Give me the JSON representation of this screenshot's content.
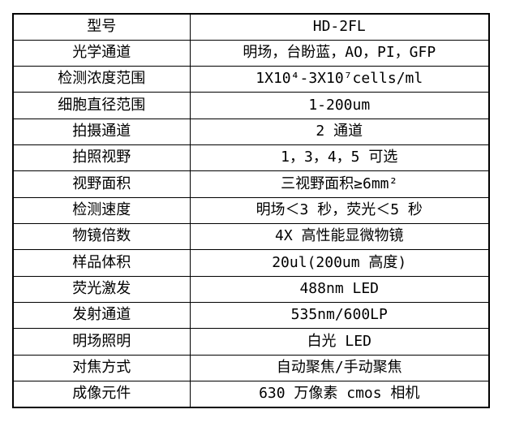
{
  "table": {
    "name": "product-specification-table",
    "model_value": "HD-2FL",
    "rows": [
      {
        "label": "型号",
        "value": "HD-2FL"
      },
      {
        "label": "光学通道",
        "value": "明场，台盼蓝，AO，PI，GFP"
      },
      {
        "label": "检测浓度范围",
        "value": "1X10⁴-3X10⁷cells/ml"
      },
      {
        "label": "细胞直径范围",
        "value": "1-200um"
      },
      {
        "label": "拍摄通道",
        "value": "2 通道"
      },
      {
        "label": "拍照视野",
        "value": "1，3，4，5 可选"
      },
      {
        "label": "视野面积",
        "value": "三视野面积≥6mm²"
      },
      {
        "label": "检测速度",
        "value": "明场＜3 秒，荧光＜5 秒"
      },
      {
        "label": "物镜倍数",
        "value": "4X 高性能显微物镜"
      },
      {
        "label": "样品体积",
        "value": "20ul(200um 高度)"
      },
      {
        "label": "荧光激发",
        "value": "488nm LED"
      },
      {
        "label": "发射通道",
        "value": "535nm/600LP"
      },
      {
        "label": "明场照明",
        "value": "白光 LED"
      },
      {
        "label": "对焦方式",
        "value": "自动聚焦/手动聚焦"
      },
      {
        "label": "成像元件",
        "value": "630 万像素 cmos 相机"
      }
    ],
    "colors": {
      "border": "#000000",
      "text": "#000000",
      "background": "#ffffff"
    }
  }
}
